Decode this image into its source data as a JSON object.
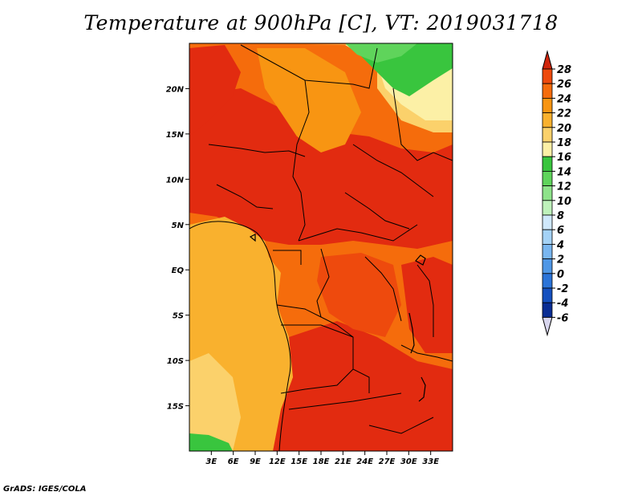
{
  "title": "Temperature at 900hPa [C], VT: 2019031718",
  "footer": "GrADS: IGES/COLA",
  "map": {
    "lon_range": [
      0,
      36
    ],
    "lat_range": [
      -20,
      25
    ],
    "lon_ticks": [
      "3E",
      "6E",
      "9E",
      "12E",
      "15E",
      "18E",
      "21E",
      "24E",
      "27E",
      "30E",
      "33E"
    ],
    "lon_tick_values": [
      3,
      6,
      9,
      12,
      15,
      18,
      21,
      24,
      27,
      30,
      33
    ],
    "lat_ticks": [
      "20N",
      "15N",
      "10N",
      "5N",
      "EQ",
      "5S",
      "10S",
      "15S"
    ],
    "lat_tick_values": [
      20,
      15,
      10,
      5,
      0,
      -5,
      -10,
      -15
    ]
  },
  "colorbar": {
    "levels": [
      "28",
      "26",
      "24",
      "22",
      "20",
      "18",
      "16",
      "14",
      "12",
      "10",
      "8",
      "6",
      "4",
      "2",
      "0",
      "-2",
      "-4",
      "-6"
    ],
    "colors": [
      "#e22b10",
      "#ee4a0d",
      "#f56c0c",
      "#f89512",
      "#f9b12e",
      "#fbd16b",
      "#fcf0a6",
      "#39c53e",
      "#5fd45b",
      "#8ee38a",
      "#bff2bb",
      "#cfe8fb",
      "#a4d2f6",
      "#79b6f0",
      "#4f97e6",
      "#2b74d8",
      "#1550bf",
      "#0a2d94",
      "#061a5c"
    ],
    "top_arrow_color": "#d0250c",
    "bottom_arrow_color": "#d8d6ee"
  }
}
